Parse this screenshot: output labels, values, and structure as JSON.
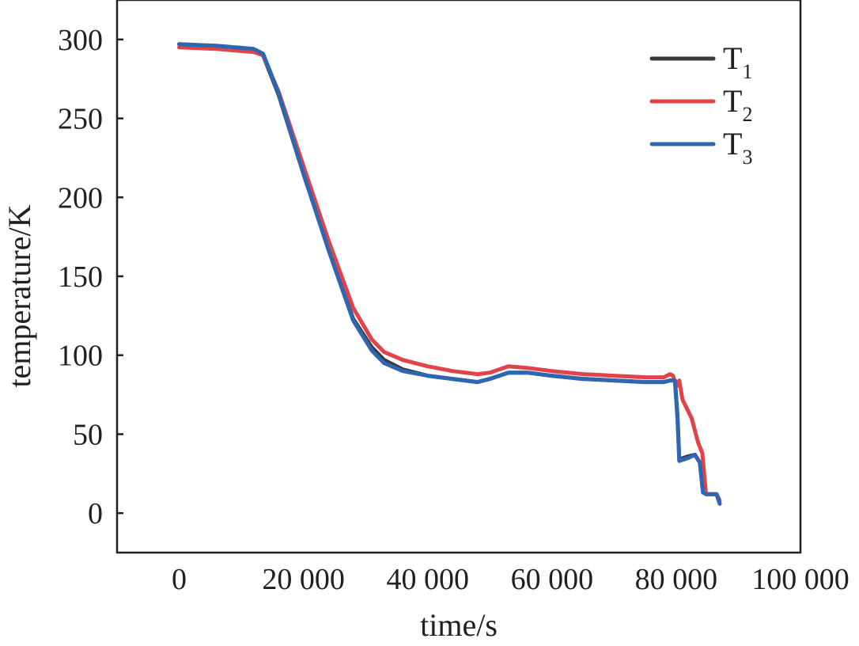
{
  "chart_data": {
    "type": "line",
    "title": "",
    "xlabel": "time/s",
    "ylabel": "temperature/K",
    "xlim": [
      -10000,
      100000
    ],
    "ylim": [
      -25,
      325
    ],
    "xticks": [
      0,
      20000,
      40000,
      60000,
      80000,
      100000
    ],
    "xtick_labels": [
      "0",
      "20 000",
      "40 000",
      "60 000",
      "80 000",
      "100 000"
    ],
    "yticks": [
      0,
      50,
      100,
      150,
      200,
      250,
      300
    ],
    "ytick_labels": [
      "0",
      "50",
      "100",
      "150",
      "200",
      "250",
      "300"
    ],
    "grid": false,
    "legend_position": "top-right",
    "series": [
      {
        "name": "T1",
        "legend_main": "T",
        "legend_sub": "1",
        "color": "#3a3a3a",
        "x": [
          0,
          6000,
          12000,
          13500,
          16000,
          20000,
          24000,
          28000,
          31000,
          33000,
          36000,
          40000,
          44000,
          48000,
          50000,
          53000,
          56000,
          60000,
          65000,
          70000,
          75000,
          78000,
          79000,
          79800,
          80200,
          80500,
          82000,
          83000,
          83800,
          84300,
          84800,
          86500,
          87000
        ],
        "y": [
          297,
          295,
          293,
          290,
          265,
          215,
          168,
          123,
          105,
          97,
          91,
          87,
          85,
          83,
          85,
          89,
          89,
          87,
          85,
          84,
          83,
          83,
          84,
          84,
          62,
          34,
          36,
          37,
          32,
          14,
          12,
          12,
          6
        ]
      },
      {
        "name": "T2",
        "legend_main": "T",
        "legend_sub": "2",
        "color": "#e0434a",
        "x": [
          0,
          6000,
          12000,
          13500,
          16000,
          20000,
          24000,
          28000,
          31000,
          33000,
          36000,
          40000,
          44000,
          48000,
          50000,
          53000,
          56000,
          60000,
          65000,
          70000,
          75000,
          78000,
          79000,
          79500,
          80000,
          80500,
          81000,
          82500,
          83500,
          84200,
          84800,
          86500,
          87000
        ],
        "y": [
          295,
          294,
          292,
          290,
          267,
          220,
          173,
          130,
          110,
          102,
          97,
          93,
          90,
          88,
          89,
          93,
          92,
          90,
          88,
          87,
          86,
          86,
          88,
          87,
          80,
          84,
          72,
          60,
          45,
          38,
          12,
          12,
          8
        ]
      },
      {
        "name": "T3",
        "legend_main": "T",
        "legend_sub": "3",
        "color": "#2e67b1",
        "x": [
          0,
          6000,
          12000,
          13500,
          16000,
          20000,
          24000,
          28000,
          31000,
          33000,
          36000,
          40000,
          44000,
          48000,
          50000,
          53000,
          56000,
          60000,
          65000,
          70000,
          75000,
          78000,
          79000,
          79800,
          80200,
          80500,
          82000,
          83000,
          83800,
          84300,
          84800,
          86500,
          87000
        ],
        "y": [
          297,
          296,
          294,
          291,
          266,
          215,
          167,
          122,
          103,
          95,
          90,
          87,
          85,
          83,
          85,
          89,
          89,
          87,
          85,
          84,
          83,
          83,
          84,
          84,
          60,
          33,
          35,
          37,
          32,
          13,
          12,
          12,
          6
        ]
      }
    ]
  }
}
